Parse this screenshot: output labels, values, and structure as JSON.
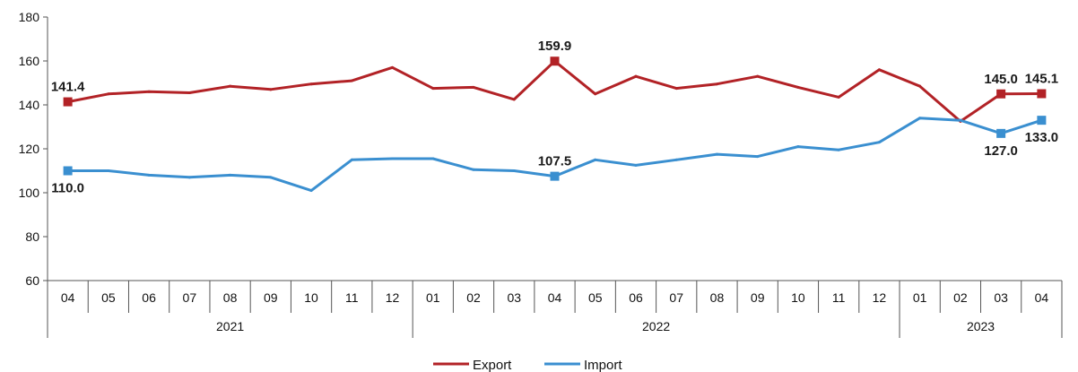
{
  "chart_data": {
    "type": "line",
    "categories": [
      "04",
      "05",
      "06",
      "07",
      "08",
      "09",
      "10",
      "11",
      "12",
      "01",
      "02",
      "03",
      "04",
      "05",
      "06",
      "07",
      "08",
      "09",
      "10",
      "11",
      "12",
      "01",
      "02",
      "03",
      "04"
    ],
    "years": [
      {
        "label": "2021",
        "start": 0,
        "end": 8
      },
      {
        "label": "2022",
        "start": 9,
        "end": 20
      },
      {
        "label": "2023",
        "start": 21,
        "end": 24
      }
    ],
    "series": [
      {
        "name": "Export",
        "color": "#b22226",
        "values": [
          141.4,
          145.0,
          146.0,
          145.5,
          148.5,
          147.0,
          149.5,
          151.0,
          157.0,
          147.5,
          148.0,
          142.5,
          159.9,
          145.0,
          153.0,
          147.5,
          149.5,
          153.0,
          148.0,
          143.5,
          156.0,
          148.5,
          132.5,
          145.0,
          145.1
        ],
        "labels": [
          {
            "index": 0,
            "text": "141.4",
            "pos": "above"
          },
          {
            "index": 12,
            "text": "159.9",
            "pos": "above"
          },
          {
            "index": 23,
            "text": "145.0",
            "pos": "above"
          },
          {
            "index": 24,
            "text": "145.1",
            "pos": "above"
          }
        ]
      },
      {
        "name": "Import",
        "color": "#3a8fd0",
        "values": [
          110.0,
          110.0,
          108.0,
          107.0,
          108.0,
          107.0,
          101.0,
          115.0,
          115.5,
          115.5,
          110.5,
          110.0,
          107.5,
          115.0,
          112.5,
          115.0,
          117.5,
          116.5,
          121.0,
          119.5,
          123.0,
          134.0,
          133.0,
          127.0,
          133.0
        ],
        "labels": [
          {
            "index": 0,
            "text": "110.0",
            "pos": "below"
          },
          {
            "index": 12,
            "text": "107.5",
            "pos": "above"
          },
          {
            "index": 23,
            "text": "127.0",
            "pos": "below"
          },
          {
            "index": 24,
            "text": "133.0",
            "pos": "below"
          }
        ]
      }
    ],
    "ylim": [
      60,
      180
    ],
    "yticks": [
      60,
      80,
      100,
      120,
      140,
      160,
      180
    ],
    "grid": false,
    "legend": "bottom-center",
    "title": "",
    "xlabel": "",
    "ylabel": ""
  }
}
